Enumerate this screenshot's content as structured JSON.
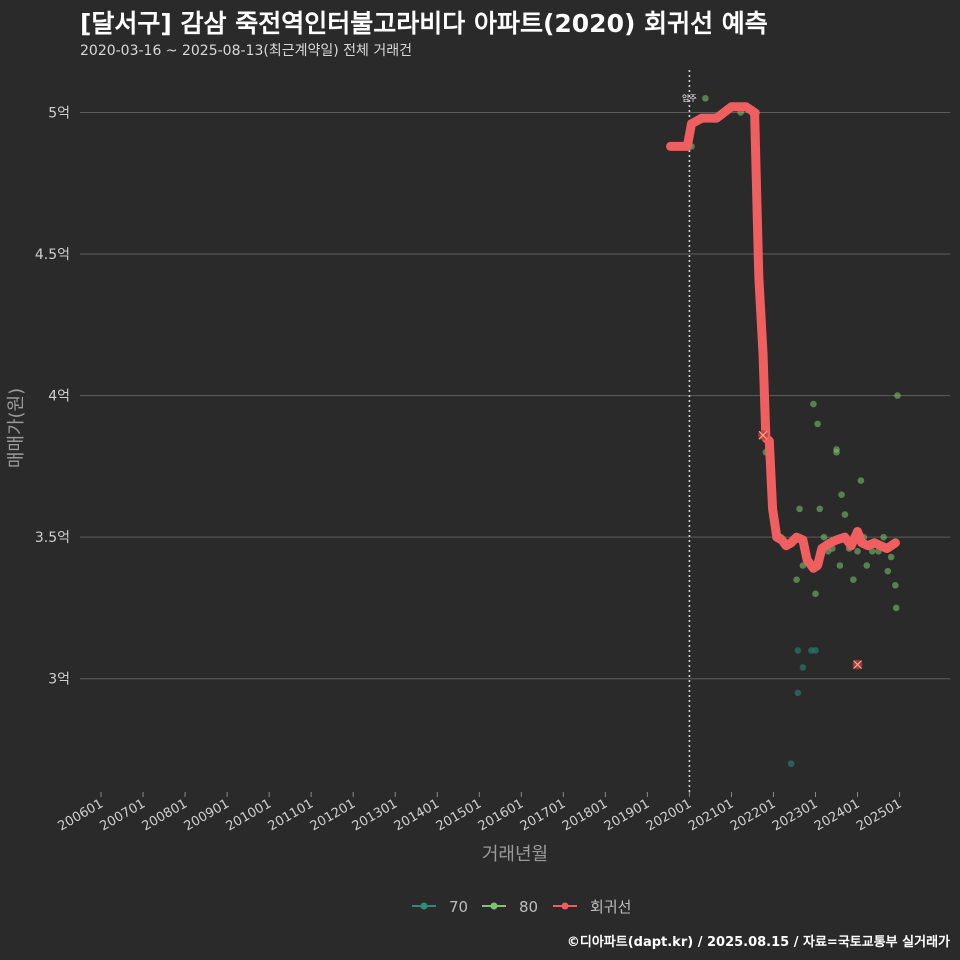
{
  "header": {
    "title": "[달서구] 감삼 죽전역인터불고라비다 아파트(2020) 회귀선 예측",
    "subtitle": "2020-03-16 ~ 2025-08-13(최근계약일) 전체 거래건"
  },
  "footer": {
    "credit": "©디아파트(dapt.kr) / 2025.08.15 / 자료=국토교통부 실거래가"
  },
  "colors": {
    "background": "#2b2a2b",
    "grid": "#5e5e5e",
    "series_70": "#2a8c7a",
    "series_80": "#7bc86c",
    "regression": "#f05f5f",
    "vline": "#d0d0d0"
  },
  "chart_data": {
    "type": "scatter",
    "title": "[달서구] 감삼 죽전역인터불고라비다 아파트(2020) 회귀선 예측",
    "xlabel": "거래년월",
    "ylabel": "매매가(원)",
    "ylim": [
      2.6,
      5.15
    ],
    "xlim": [
      2005.5,
      2026.2
    ],
    "x_ticks": [
      {
        "x": 2006,
        "label": "200601"
      },
      {
        "x": 2007,
        "label": "200701"
      },
      {
        "x": 2008,
        "label": "200801"
      },
      {
        "x": 2009,
        "label": "200901"
      },
      {
        "x": 2010,
        "label": "201001"
      },
      {
        "x": 2011,
        "label": "201101"
      },
      {
        "x": 2012,
        "label": "201201"
      },
      {
        "x": 2013,
        "label": "201301"
      },
      {
        "x": 2014,
        "label": "201401"
      },
      {
        "x": 2015,
        "label": "201501"
      },
      {
        "x": 2016,
        "label": "201601"
      },
      {
        "x": 2017,
        "label": "201701"
      },
      {
        "x": 2018,
        "label": "201801"
      },
      {
        "x": 2019,
        "label": "201901"
      },
      {
        "x": 2020,
        "label": "202001"
      },
      {
        "x": 2021,
        "label": "202101"
      },
      {
        "x": 2022,
        "label": "202201"
      },
      {
        "x": 2023,
        "label": "202301"
      },
      {
        "x": 2024,
        "label": "202401"
      },
      {
        "x": 2025,
        "label": "202501"
      }
    ],
    "y_ticks": [
      {
        "y": 3.0,
        "label": "3억"
      },
      {
        "y": 3.5,
        "label": "3.5억"
      },
      {
        "y": 4.0,
        "label": "4억"
      },
      {
        "y": 4.5,
        "label": "4.5억"
      },
      {
        "y": 5.0,
        "label": "5억"
      }
    ],
    "vline": {
      "x": 2020.0,
      "label": "입주"
    },
    "legend": [
      "70",
      "80",
      "회귀선"
    ],
    "series": [
      {
        "name": "70",
        "points": [
          [
            2022.42,
            2.7
          ],
          [
            2022.58,
            3.1
          ],
          [
            2022.58,
            2.95
          ],
          [
            2022.7,
            3.04
          ],
          [
            2022.9,
            3.1
          ],
          [
            2023.0,
            3.1
          ],
          [
            2024.0,
            3.05
          ]
        ]
      },
      {
        "name": "80",
        "points": [
          [
            2020.05,
            4.88
          ],
          [
            2020.38,
            5.05
          ],
          [
            2020.82,
            5.0
          ],
          [
            2021.22,
            5.0
          ],
          [
            2021.6,
            5.0
          ],
          [
            2021.75,
            3.86
          ],
          [
            2021.82,
            3.8
          ],
          [
            2022.05,
            3.5
          ],
          [
            2022.18,
            3.5
          ],
          [
            2022.3,
            3.48
          ],
          [
            2022.55,
            3.35
          ],
          [
            2022.62,
            3.6
          ],
          [
            2022.7,
            3.4
          ],
          [
            2022.8,
            3.44
          ],
          [
            2022.95,
            3.97
          ],
          [
            2023.0,
            3.3
          ],
          [
            2023.05,
            3.9
          ],
          [
            2023.1,
            3.6
          ],
          [
            2023.2,
            3.5
          ],
          [
            2023.3,
            3.45
          ],
          [
            2023.4,
            3.46
          ],
          [
            2023.5,
            3.81
          ],
          [
            2023.5,
            3.8
          ],
          [
            2023.58,
            3.4
          ],
          [
            2023.62,
            3.65
          ],
          [
            2023.7,
            3.58
          ],
          [
            2023.8,
            3.46
          ],
          [
            2023.9,
            3.35
          ],
          [
            2024.0,
            3.45
          ],
          [
            2024.08,
            3.7
          ],
          [
            2024.15,
            3.5
          ],
          [
            2024.22,
            3.4
          ],
          [
            2024.35,
            3.45
          ],
          [
            2024.5,
            3.45
          ],
          [
            2024.62,
            3.5
          ],
          [
            2024.72,
            3.38
          ],
          [
            2024.8,
            3.43
          ],
          [
            2024.9,
            3.33
          ],
          [
            2024.92,
            3.25
          ],
          [
            2024.95,
            4.0
          ]
        ]
      },
      {
        "name": "회귀선",
        "points": [
          [
            2019.55,
            4.88
          ],
          [
            2019.95,
            4.88
          ],
          [
            2020.05,
            4.96
          ],
          [
            2020.3,
            4.98
          ],
          [
            2020.65,
            4.98
          ],
          [
            2021.0,
            5.02
          ],
          [
            2021.35,
            5.02
          ],
          [
            2021.55,
            5.0
          ],
          [
            2021.65,
            4.42
          ],
          [
            2021.75,
            4.15
          ],
          [
            2021.82,
            3.85
          ],
          [
            2021.9,
            3.84
          ],
          [
            2021.98,
            3.6
          ],
          [
            2022.08,
            3.5
          ],
          [
            2022.2,
            3.49
          ],
          [
            2022.3,
            3.47
          ],
          [
            2022.42,
            3.48
          ],
          [
            2022.55,
            3.5
          ],
          [
            2022.7,
            3.49
          ],
          [
            2022.8,
            3.42
          ],
          [
            2022.95,
            3.39
          ],
          [
            2023.05,
            3.4
          ],
          [
            2023.15,
            3.46
          ],
          [
            2023.35,
            3.48
          ],
          [
            2023.5,
            3.49
          ],
          [
            2023.7,
            3.5
          ],
          [
            2023.85,
            3.47
          ],
          [
            2024.0,
            3.52
          ],
          [
            2024.1,
            3.48
          ],
          [
            2024.25,
            3.47
          ],
          [
            2024.4,
            3.48
          ],
          [
            2024.55,
            3.47
          ],
          [
            2024.7,
            3.46
          ],
          [
            2024.8,
            3.47
          ],
          [
            2024.9,
            3.48
          ]
        ]
      }
    ],
    "highlighted": [
      [
        2021.75,
        3.86
      ],
      [
        2024.0,
        3.05
      ]
    ]
  }
}
